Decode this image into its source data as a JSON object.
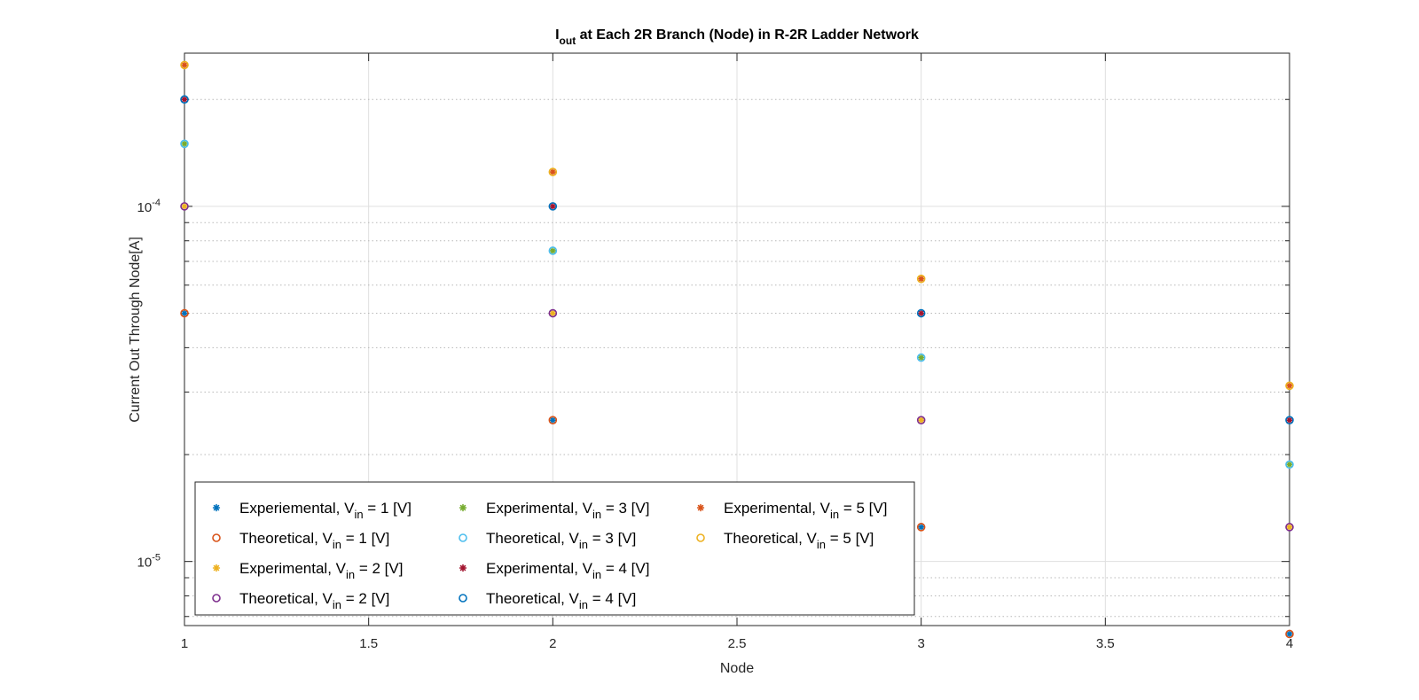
{
  "chart_data": {
    "type": "scatter",
    "title": {
      "pre": "I",
      "sub": "out",
      "post": " at Each 2R Branch (Node) in R-2R Ladder Network"
    },
    "xlabel": "Node",
    "ylabel": "Current Out Through Node[A]",
    "xlim": [
      1,
      4
    ],
    "ylim": [
      6.6e-06,
      0.00027
    ],
    "yscale": "log",
    "xticks": [
      1,
      1.5,
      2,
      2.5,
      3,
      3.5,
      4
    ],
    "xtick_labels": [
      "1",
      "1.5",
      "2",
      "2.5",
      "3",
      "3.5",
      "4"
    ],
    "yticks": [
      {
        "value": 1e-05,
        "base": "10",
        "exp": "-5"
      },
      {
        "value": 0.0001,
        "base": "10",
        "exp": "-4"
      }
    ],
    "grid": true,
    "legend": {
      "placement": "bottom-left",
      "columns": 3
    },
    "x": [
      1,
      2,
      3,
      4
    ],
    "series": [
      {
        "name": "Experiemental, V",
        "sub": "in",
        "post": " = 1 [V]",
        "marker": "star",
        "color": "#0072BD",
        "values": [
          5e-05,
          2.5e-05,
          1.25e-05,
          6.25e-06
        ]
      },
      {
        "name": "Theoretical, V",
        "sub": "in",
        "post": " = 1 [V]",
        "marker": "circle",
        "color": "#D95319",
        "values": [
          5e-05,
          2.5e-05,
          1.25e-05,
          6.25e-06
        ]
      },
      {
        "name": "Experimental, V",
        "sub": "in",
        "post": " = 2 [V]",
        "marker": "star",
        "color": "#EDB120",
        "values": [
          0.0001,
          5e-05,
          2.5e-05,
          1.25e-05
        ]
      },
      {
        "name": "Theoretical, V",
        "sub": "in",
        "post": " = 2 [V]",
        "marker": "circle",
        "color": "#7E2F8E",
        "values": [
          0.0001,
          5e-05,
          2.5e-05,
          1.25e-05
        ]
      },
      {
        "name": "Experimental, V",
        "sub": "in",
        "post": " = 3 [V]",
        "marker": "star",
        "color": "#77AC30",
        "values": [
          0.00015,
          7.5e-05,
          3.75e-05,
          1.875e-05
        ]
      },
      {
        "name": "Theoretical, V",
        "sub": "in",
        "post": " = 3 [V]",
        "marker": "circle",
        "color": "#4DBEEE",
        "values": [
          0.00015,
          7.5e-05,
          3.75e-05,
          1.875e-05
        ]
      },
      {
        "name": "Experimental, V",
        "sub": "in",
        "post": " = 4 [V]",
        "marker": "star",
        "color": "#A2142F",
        "values": [
          0.0002,
          0.0001,
          5e-05,
          2.5e-05
        ]
      },
      {
        "name": "Theoretical, V",
        "sub": "in",
        "post": " = 4 [V]",
        "marker": "circle",
        "color": "#0072BD",
        "values": [
          0.0002,
          0.0001,
          5e-05,
          2.5e-05
        ]
      },
      {
        "name": "Experimental, V",
        "sub": "in",
        "post": " = 5 [V]",
        "marker": "star",
        "color": "#D95319",
        "values": [
          0.00025,
          0.000125,
          6.25e-05,
          3.125e-05
        ]
      },
      {
        "name": "Theoretical, V",
        "sub": "in",
        "post": " = 5 [V]",
        "marker": "circle",
        "color": "#EDB120",
        "values": [
          0.00025,
          0.000125,
          6.25e-05,
          3.125e-05
        ]
      }
    ]
  }
}
